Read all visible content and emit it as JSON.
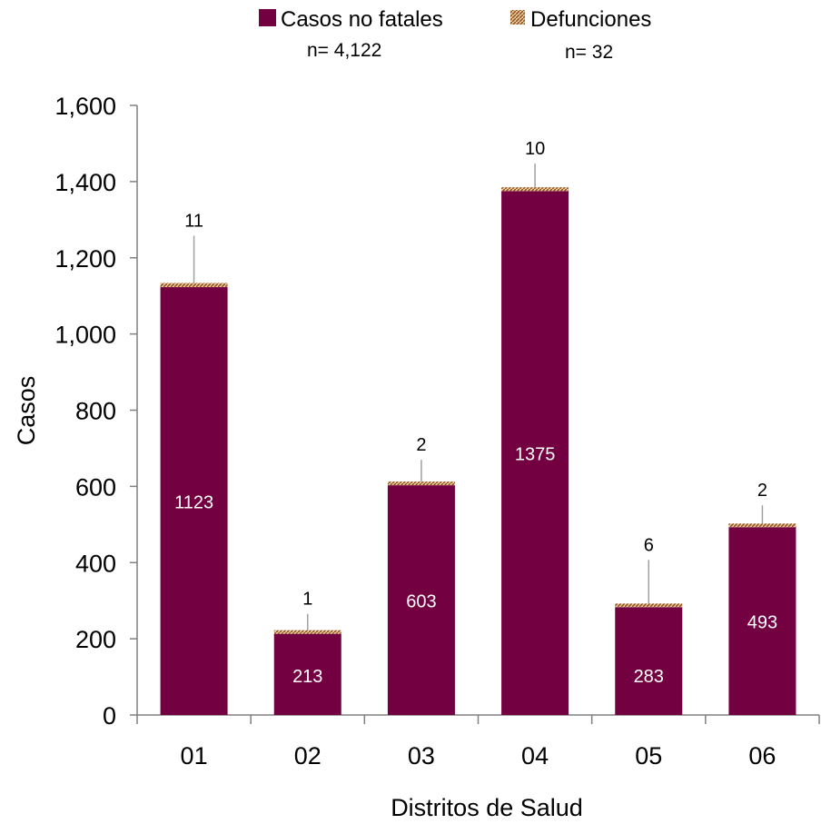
{
  "chart_data": {
    "type": "bar",
    "stacked": true,
    "categories": [
      "01",
      "02",
      "03",
      "04",
      "05",
      "06"
    ],
    "series": [
      {
        "name": "Casos no fatales",
        "values": [
          1123,
          213,
          603,
          1375,
          283,
          493
        ],
        "color": "#730040"
      },
      {
        "name": "Defunciones",
        "values": [
          11,
          1,
          2,
          10,
          6,
          2
        ],
        "color": "#c0703a",
        "pattern": "hatched"
      }
    ],
    "legend": [
      {
        "label": "Casos no fatales",
        "note": "n= 4,122"
      },
      {
        "label": "Defunciones",
        "note": "n= 32"
      }
    ],
    "legend_position": "top",
    "xlabel": "Distritos de Salud",
    "ylabel": "Casos",
    "ylim": [
      0,
      1600
    ],
    "yticks": [
      "0",
      "200",
      "400",
      "600",
      "800",
      "1,000",
      "1,200",
      "1,400",
      "1,600"
    ],
    "grid": false
  }
}
